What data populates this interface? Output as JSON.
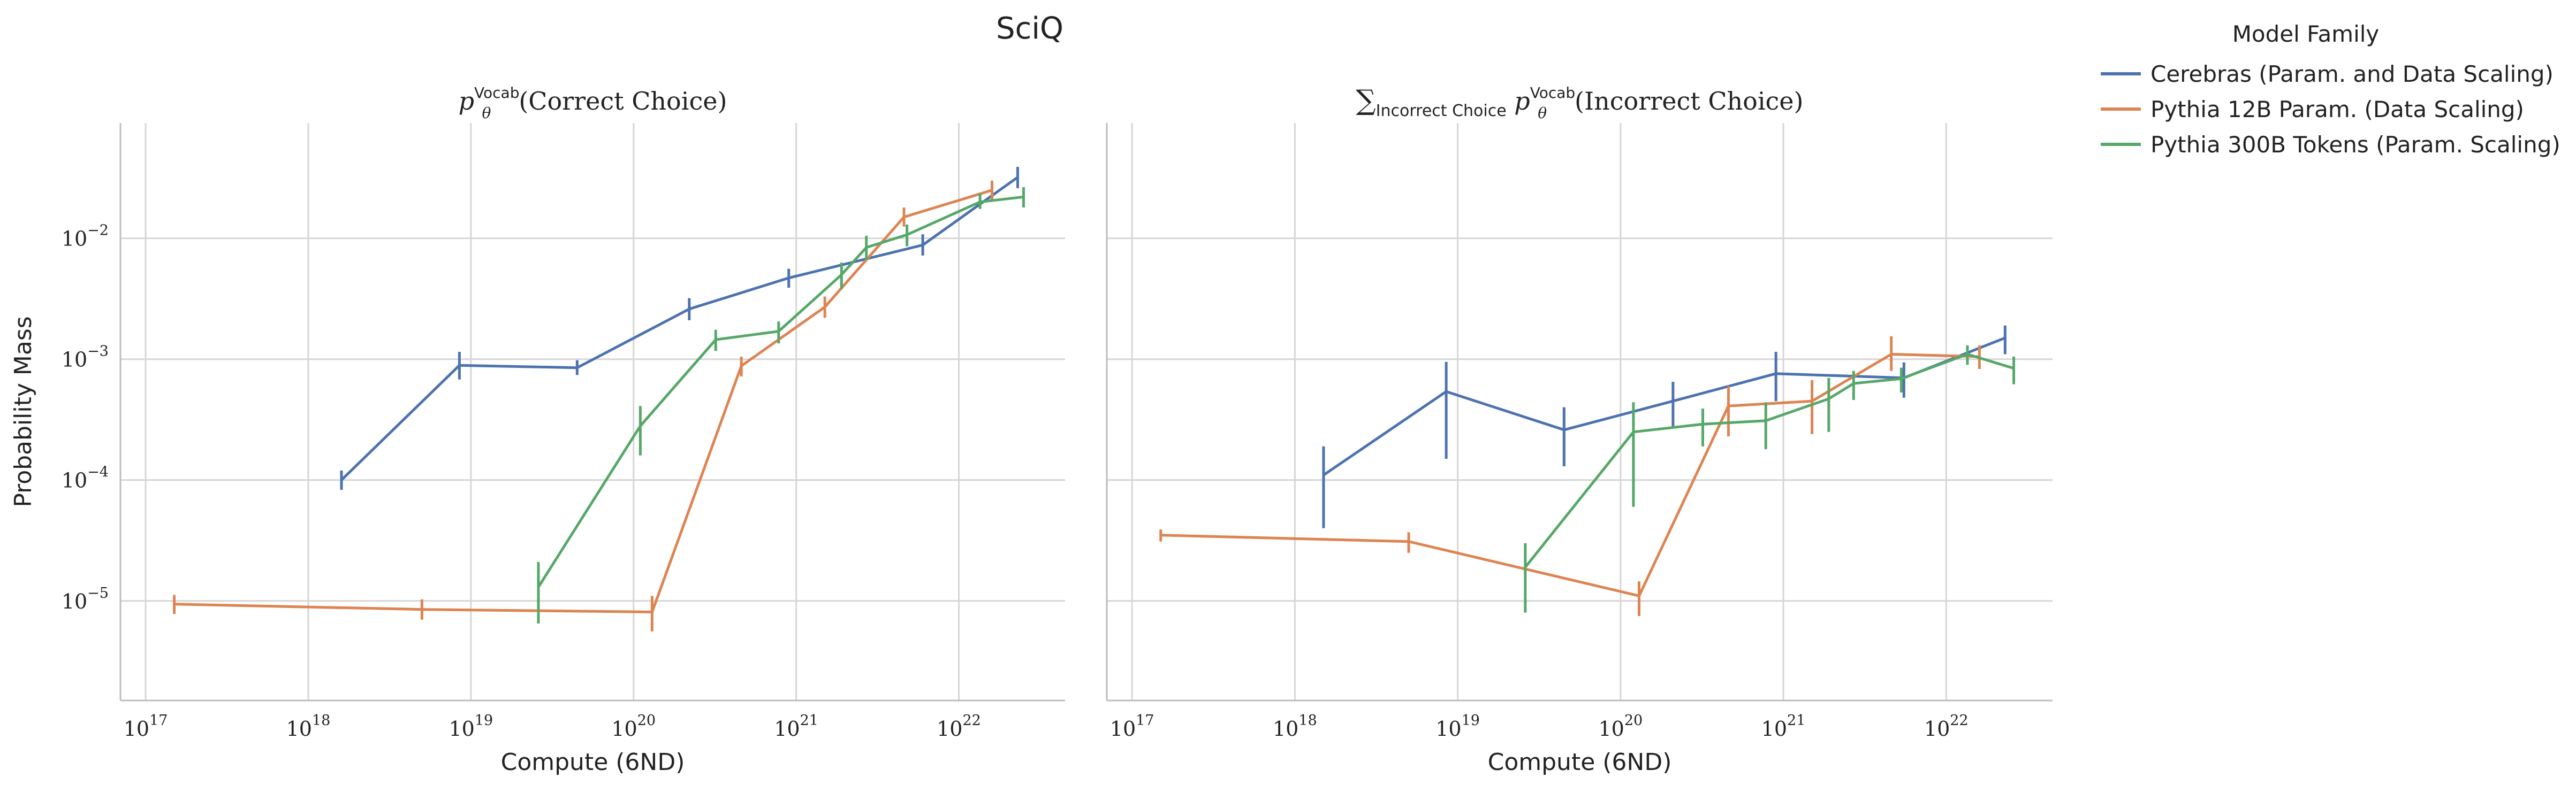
{
  "figure_title": "SciQ",
  "legend": {
    "title": "Model Family",
    "placement": "outside-right-top"
  },
  "chart_data": [
    {
      "type": "line",
      "panel": "left",
      "title_math": {
        "base": "p",
        "sub": "θ",
        "sup": "Vocab",
        "arg": "(Correct Choice)"
      },
      "xlabel": "Compute (6ND)",
      "ylabel": "Probability Mass",
      "x_scale": "log",
      "y_scale": "log",
      "xlim": [
        7e+16,
        4.5e+22
      ],
      "ylim": [
        1.5e-06,
        0.09
      ],
      "x_ticks": [
        {
          "value": 1e+17,
          "base": "10",
          "exp": "17"
        },
        {
          "value": 1e+18,
          "base": "10",
          "exp": "18"
        },
        {
          "value": 1e+19,
          "base": "10",
          "exp": "19"
        },
        {
          "value": 1e+20,
          "base": "10",
          "exp": "20"
        },
        {
          "value": 1e+21,
          "base": "10",
          "exp": "21"
        },
        {
          "value": 1e+22,
          "base": "10",
          "exp": "22"
        }
      ],
      "y_ticks": [
        {
          "value": 1e-05,
          "base": "10",
          "exp": "−5"
        },
        {
          "value": 0.0001,
          "base": "10",
          "exp": "−4"
        },
        {
          "value": 0.001,
          "base": "10",
          "exp": "−3"
        },
        {
          "value": 0.01,
          "base": "10",
          "exp": "−2"
        }
      ],
      "grid": true,
      "series": [
        {
          "name": "Cerebras (Param. and Data Scaling)",
          "color": "#4c72b0",
          "points": [
            {
              "x": 1.6e+18,
              "y": 0.0001,
              "lo": 8.3e-05,
              "hi": 0.00012
            },
            {
              "x": 8.5e+18,
              "y": 0.00089,
              "lo": 0.00068,
              "hi": 0.00115
            },
            {
              "x": 4.5e+19,
              "y": 0.00085,
              "lo": 0.00074,
              "hi": 0.00098
            },
            {
              "x": 2.2e+20,
              "y": 0.0026,
              "lo": 0.0021,
              "hi": 0.0032
            },
            {
              "x": 9e+20,
              "y": 0.0047,
              "lo": 0.0039,
              "hi": 0.0056
            },
            {
              "x": 6e+21,
              "y": 0.0088,
              "lo": 0.0072,
              "hi": 0.0108
            },
            {
              "x": 2.3e+22,
              "y": 0.032,
              "lo": 0.026,
              "hi": 0.039
            }
          ]
        },
        {
          "name": "Pythia 12B Param. (Data Scaling)",
          "color": "#dd8452",
          "points": [
            {
              "x": 1.5e+17,
              "y": 9.4e-06,
              "lo": 7.8e-06,
              "hi": 1.12e-05
            },
            {
              "x": 5e+18,
              "y": 8.5e-06,
              "lo": 7e-06,
              "hi": 1.03e-05
            },
            {
              "x": 1.3e+20,
              "y": 8.1e-06,
              "lo": 5.6e-06,
              "hi": 1.1e-05
            },
            {
              "x": 4.6e+20,
              "y": 0.00088,
              "lo": 0.00072,
              "hi": 0.00105
            },
            {
              "x": 1.5e+21,
              "y": 0.0027,
              "lo": 0.0022,
              "hi": 0.0033
            },
            {
              "x": 4.6e+21,
              "y": 0.015,
              "lo": 0.0125,
              "hi": 0.018
            },
            {
              "x": 1.6e+22,
              "y": 0.025,
              "lo": 0.0205,
              "hi": 0.03
            }
          ]
        },
        {
          "name": "Pythia 300B Tokens (Param. Scaling)",
          "color": "#55a868",
          "points": [
            {
              "x": 2.6e+19,
              "y": 1.3e-05,
              "lo": 6.5e-06,
              "hi": 2.1e-05
            },
            {
              "x": 1.1e+20,
              "y": 0.00028,
              "lo": 0.00016,
              "hi": 0.00041
            },
            {
              "x": 3.2e+20,
              "y": 0.00145,
              "lo": 0.00117,
              "hi": 0.00175
            },
            {
              "x": 7.8e+20,
              "y": 0.0017,
              "lo": 0.00135,
              "hi": 0.00205
            },
            {
              "x": 1.9e+21,
              "y": 0.005,
              "lo": 0.0038,
              "hi": 0.0063
            },
            {
              "x": 2.7e+21,
              "y": 0.0084,
              "lo": 0.0066,
              "hi": 0.0105
            },
            {
              "x": 4.8e+21,
              "y": 0.0107,
              "lo": 0.0086,
              "hi": 0.013
            },
            {
              "x": 1.35e+22,
              "y": 0.02,
              "lo": 0.0175,
              "hi": 0.0235
            },
            {
              "x": 2.5e+22,
              "y": 0.022,
              "lo": 0.018,
              "hi": 0.0265
            }
          ]
        }
      ]
    },
    {
      "type": "line",
      "panel": "right",
      "title_math": {
        "sum": "∑",
        "sum_sub": "Incorrect Choice",
        "base": "p",
        "sub": "θ",
        "sup": "Vocab",
        "arg": "(Incorrect Choice)"
      },
      "xlabel": "Compute (6ND)",
      "ylabel": "",
      "x_scale": "log",
      "y_scale": "log",
      "xlim": [
        7e+16,
        4.5e+22
      ],
      "ylim": [
        1.5e-06,
        0.09
      ],
      "x_ticks": [
        {
          "value": 1e+17,
          "base": "10",
          "exp": "17"
        },
        {
          "value": 1e+18,
          "base": "10",
          "exp": "18"
        },
        {
          "value": 1e+19,
          "base": "10",
          "exp": "19"
        },
        {
          "value": 1e+20,
          "base": "10",
          "exp": "20"
        },
        {
          "value": 1e+21,
          "base": "10",
          "exp": "21"
        },
        {
          "value": 1e+22,
          "base": "10",
          "exp": "22"
        }
      ],
      "y_ticks": [
        {
          "value": 1e-05
        },
        {
          "value": 0.0001
        },
        {
          "value": 0.001
        },
        {
          "value": 0.01
        }
      ],
      "grid": true,
      "series": [
        {
          "name": "Cerebras (Param. and Data Scaling)",
          "color": "#4c72b0",
          "points": [
            {
              "x": 1.5e+18,
              "y": 0.00011,
              "lo": 4e-05,
              "hi": 0.00019
            },
            {
              "x": 8.5e+18,
              "y": 0.00054,
              "lo": 0.00015,
              "hi": 0.00095
            },
            {
              "x": 4.5e+19,
              "y": 0.00026,
              "lo": 0.00013,
              "hi": 0.0004
            },
            {
              "x": 2.1e+20,
              "y": 0.00045,
              "lo": 0.00027,
              "hi": 0.00065
            },
            {
              "x": 9e+20,
              "y": 0.00076,
              "lo": 0.00045,
              "hi": 0.00115
            },
            {
              "x": 5.5e+21,
              "y": 0.0007,
              "lo": 0.00048,
              "hi": 0.00094
            },
            {
              "x": 2.3e+22,
              "y": 0.0015,
              "lo": 0.0011,
              "hi": 0.0019
            }
          ]
        },
        {
          "name": "Pythia 12B Param. (Data Scaling)",
          "color": "#dd8452",
          "points": [
            {
              "x": 1.5e+17,
              "y": 3.5e-05,
              "lo": 3.1e-05,
              "hi": 3.9e-05
            },
            {
              "x": 5e+18,
              "y": 3.1e-05,
              "lo": 2.5e-05,
              "hi": 3.7e-05
            },
            {
              "x": 1.3e+20,
              "y": 1.1e-05,
              "lo": 7.5e-06,
              "hi": 1.45e-05
            },
            {
              "x": 4.6e+20,
              "y": 0.00041,
              "lo": 0.00023,
              "hi": 0.0006
            },
            {
              "x": 1.5e+21,
              "y": 0.00045,
              "lo": 0.00024,
              "hi": 0.00067
            },
            {
              "x": 4.6e+21,
              "y": 0.0011,
              "lo": 0.0008,
              "hi": 0.00155
            },
            {
              "x": 1.6e+22,
              "y": 0.00105,
              "lo": 0.00083,
              "hi": 0.0013
            }
          ]
        },
        {
          "name": "Pythia 300B Tokens (Param. Scaling)",
          "color": "#55a868",
          "points": [
            {
              "x": 2.6e+19,
              "y": 1.9e-05,
              "lo": 8e-06,
              "hi": 3e-05
            },
            {
              "x": 1.2e+20,
              "y": 0.00025,
              "lo": 6e-05,
              "hi": 0.00044
            },
            {
              "x": 3.2e+20,
              "y": 0.00029,
              "lo": 0.00019,
              "hi": 0.00039
            },
            {
              "x": 7.8e+20,
              "y": 0.00031,
              "lo": 0.00018,
              "hi": 0.00044
            },
            {
              "x": 1.9e+21,
              "y": 0.00047,
              "lo": 0.00025,
              "hi": 0.0007
            },
            {
              "x": 2.7e+21,
              "y": 0.00063,
              "lo": 0.00046,
              "hi": 0.0008
            },
            {
              "x": 5.3e+21,
              "y": 0.00069,
              "lo": 0.00053,
              "hi": 0.00085
            },
            {
              "x": 1.35e+22,
              "y": 0.0011,
              "lo": 0.0009,
              "hi": 0.0013
            },
            {
              "x": 2.6e+22,
              "y": 0.00084,
              "lo": 0.00062,
              "hi": 0.00105
            }
          ]
        }
      ]
    }
  ]
}
